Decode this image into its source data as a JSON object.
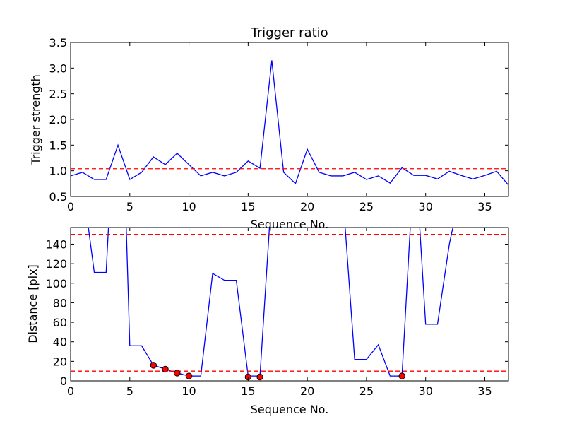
{
  "chart_data": [
    {
      "type": "line",
      "title": "Trigger ratio",
      "xlabel": "Sequence No.",
      "ylabel": "Trigger strength",
      "xlim": [
        0,
        37
      ],
      "ylim": [
        0.5,
        3.5
      ],
      "xticks": [
        0,
        5,
        10,
        15,
        20,
        25,
        30,
        35
      ],
      "yticks": [
        0.5,
        1.0,
        1.5,
        2.0,
        2.5,
        3.0,
        3.5
      ],
      "xtick_labels": [
        "0",
        "5",
        "10",
        "15",
        "20",
        "25",
        "30",
        "35"
      ],
      "ytick_labels": [
        "0.5",
        "1.0",
        "1.5",
        "2.0",
        "2.5",
        "3.0",
        "3.5"
      ],
      "series": [
        {
          "color": "#0000ff",
          "style": "solid",
          "x": [
            0,
            1,
            2,
            3,
            4,
            5,
            6,
            7,
            8,
            9,
            10,
            11,
            12,
            13,
            14,
            15,
            16,
            17,
            18,
            19,
            20,
            21,
            22,
            23,
            24,
            25,
            26,
            27,
            28,
            29,
            30,
            31,
            32,
            33,
            34,
            35,
            36,
            37
          ],
          "y": [
            0.9,
            0.97,
            0.83,
            0.83,
            1.5,
            0.83,
            0.97,
            1.27,
            1.12,
            1.34,
            1.12,
            0.9,
            0.97,
            0.9,
            0.97,
            1.19,
            1.05,
            3.15,
            0.97,
            0.75,
            1.42,
            0.97,
            0.9,
            0.9,
            0.97,
            0.83,
            0.9,
            0.76,
            1.06,
            0.91,
            0.91,
            0.84,
            0.99,
            0.91,
            0.84,
            0.91,
            0.99,
            0.72
          ]
        },
        {
          "color": "#ff0000",
          "style": "dashed",
          "x": [
            0,
            37
          ],
          "y": [
            1.04,
            1.04
          ]
        }
      ],
      "grid": false
    },
    {
      "type": "line",
      "title": "",
      "xlabel": "Sequence No.",
      "ylabel": "Distance [pix]",
      "xlim": [
        0,
        37
      ],
      "ylim": [
        0,
        157
      ],
      "xticks": [
        0,
        5,
        10,
        15,
        20,
        25,
        30,
        35
      ],
      "yticks": [
        0,
        20,
        40,
        60,
        80,
        100,
        120,
        140
      ],
      "xtick_labels": [
        "0",
        "5",
        "10",
        "15",
        "20",
        "25",
        "30",
        "35"
      ],
      "ytick_labels": [
        "0",
        "20",
        "40",
        "60",
        "80",
        "100",
        "120",
        "140"
      ],
      "series": [
        {
          "color": "#0000ff",
          "style": "solid",
          "segments": [
            {
              "x": [
                1.5,
                2,
                3,
                3.2
              ],
              "y": [
                157,
                111,
                111,
                157
              ]
            },
            {
              "x": [
                4.7,
                5,
                6,
                7,
                8,
                9,
                10,
                11,
                12,
                13,
                14,
                15,
                16,
                16.8
              ],
              "y": [
                157,
                36,
                36,
                16,
                12,
                8,
                5,
                5,
                110,
                103,
                103,
                5,
                5,
                157
              ]
            },
            {
              "x": [
                23.2,
                24,
                25,
                26,
                27,
                28,
                28.7
              ],
              "y": [
                157,
                22,
                22,
                37,
                5,
                5,
                157
              ]
            },
            {
              "x": [
                29.5,
                30,
                31,
                32,
                32.3
              ],
              "y": [
                157,
                58,
                58,
                140,
                157
              ]
            }
          ]
        },
        {
          "color": "#ff0000",
          "style": "dashed",
          "x": [
            0,
            37
          ],
          "y": [
            150,
            150
          ]
        },
        {
          "color": "#ff0000",
          "style": "dashed",
          "x": [
            0,
            37
          ],
          "y": [
            10,
            10
          ]
        },
        {
          "color": "#ff0000",
          "style": "markers",
          "x": [
            7,
            8,
            9,
            10,
            15,
            16,
            28
          ],
          "y": [
            16,
            12,
            8,
            5,
            4,
            4,
            5
          ]
        }
      ],
      "grid": false
    }
  ]
}
